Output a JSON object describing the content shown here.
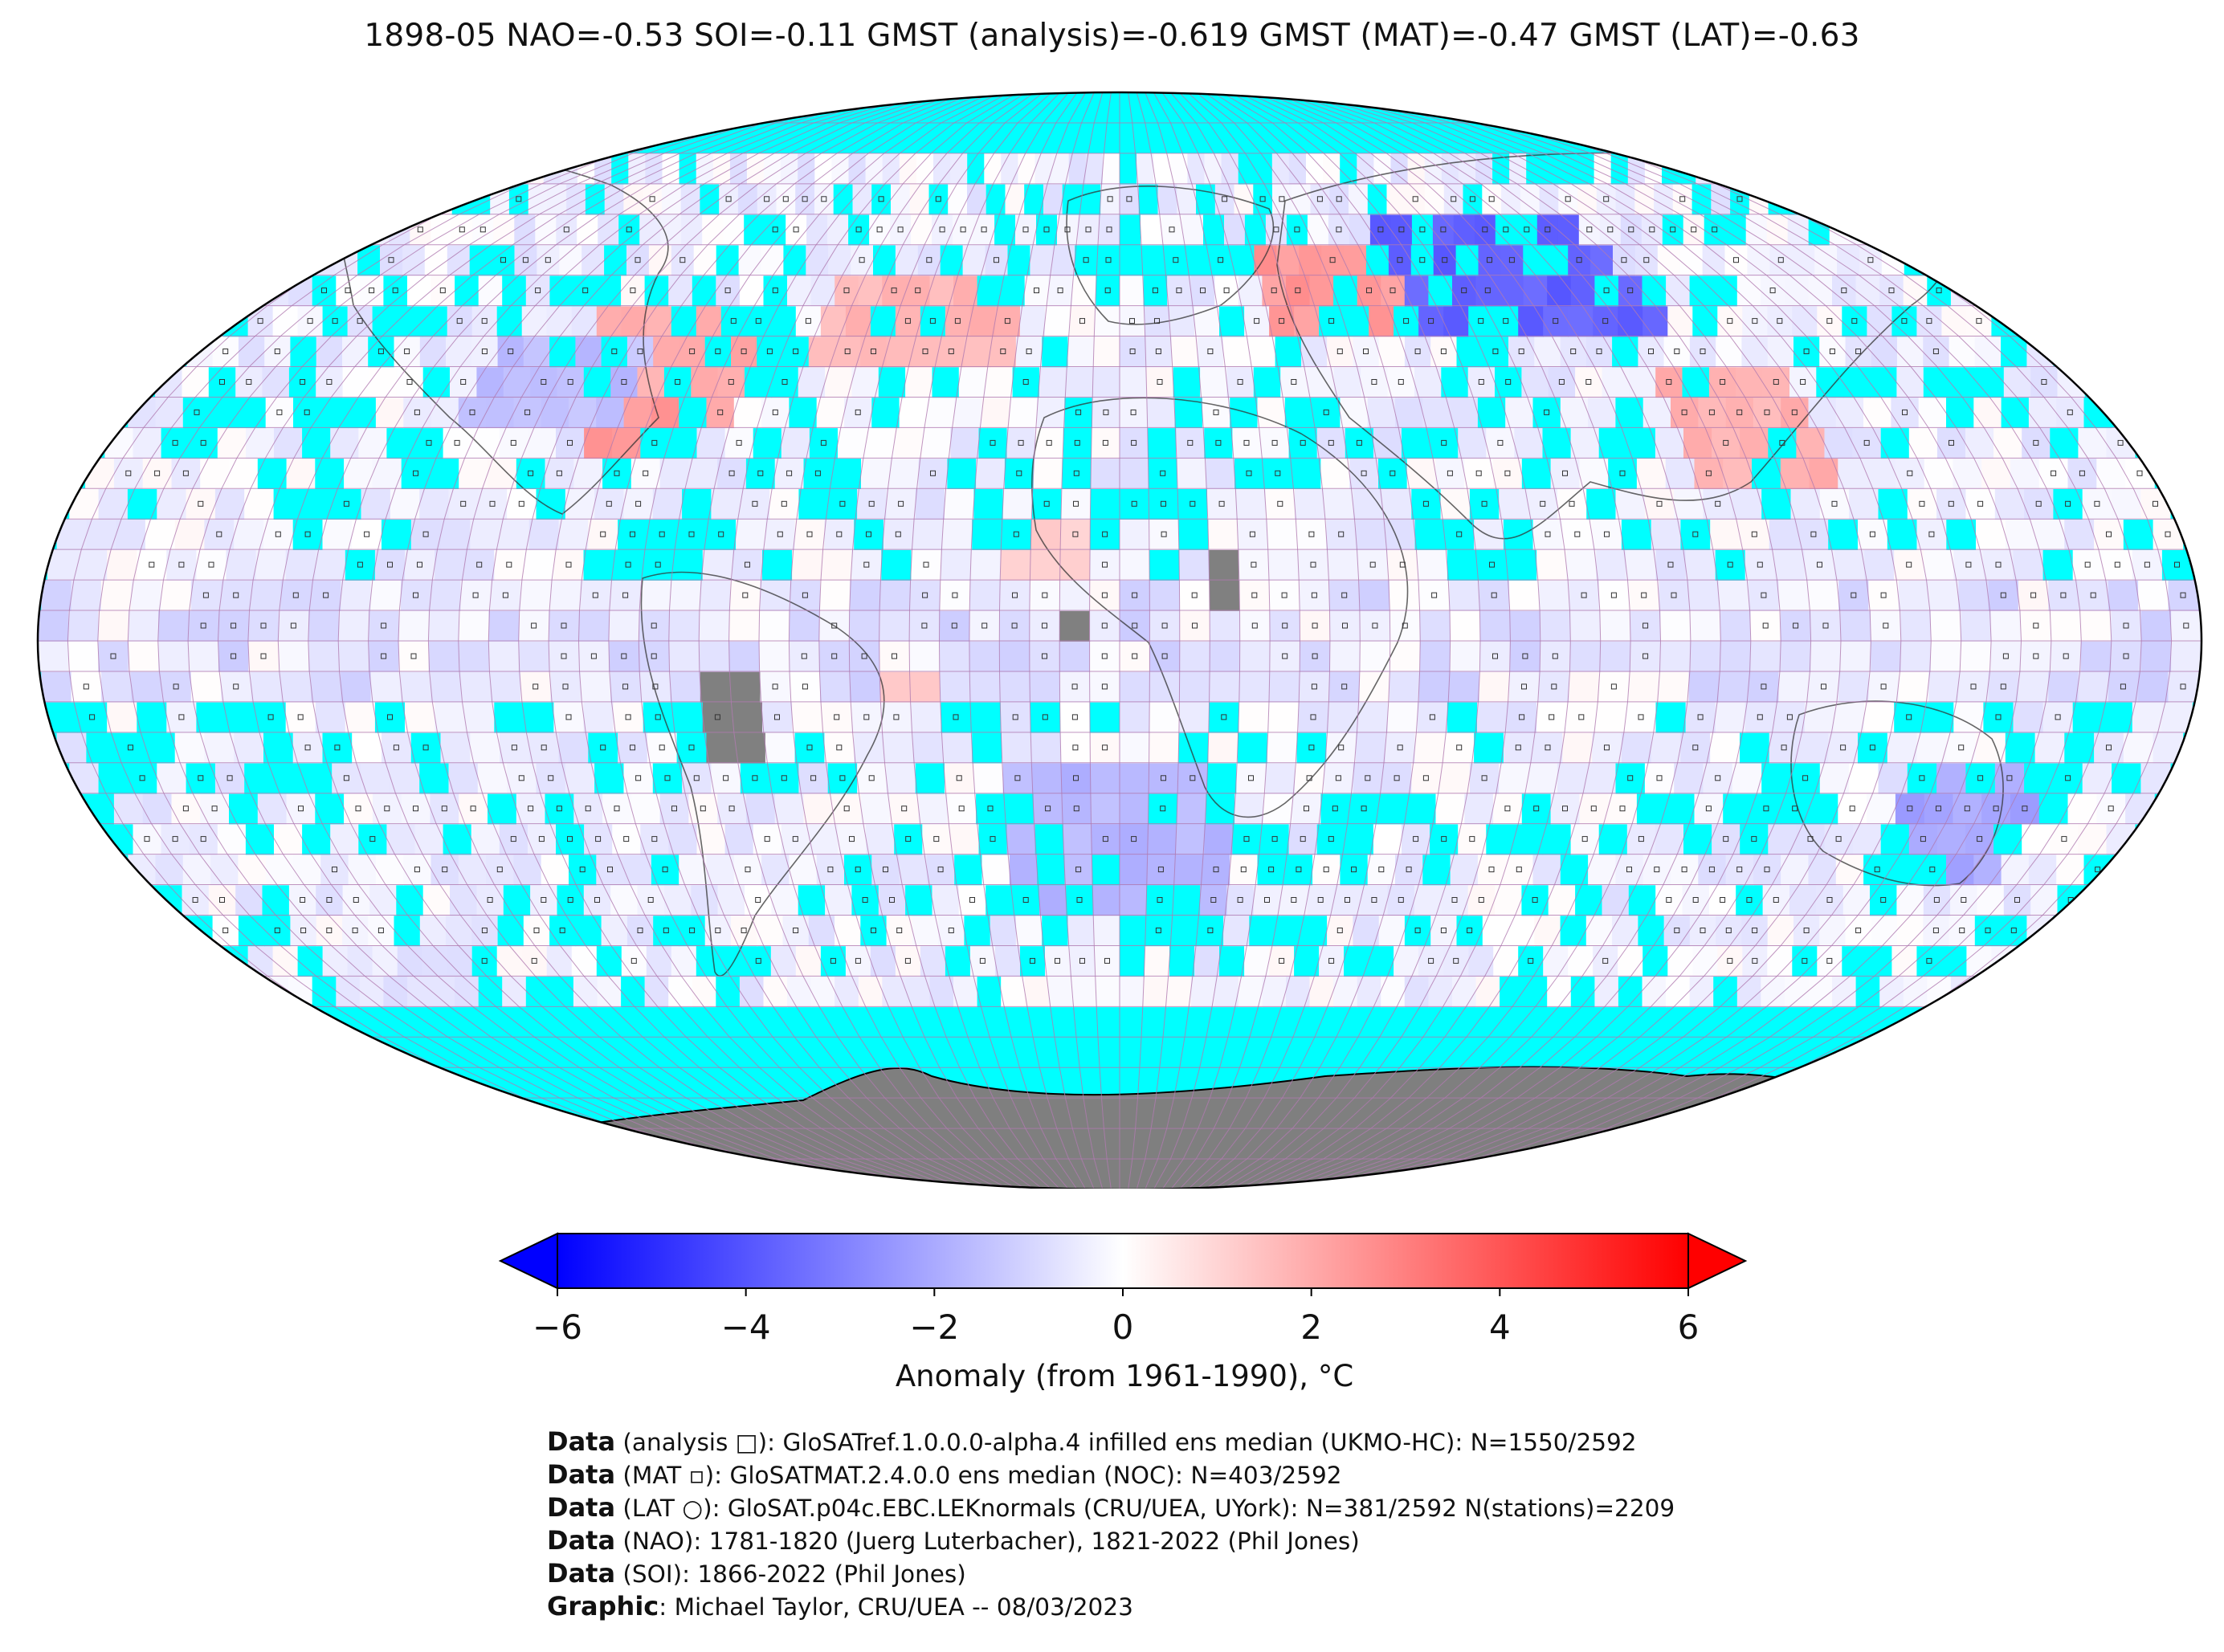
{
  "title": "1898-05 NAO=-0.53 SOI=-0.11 GMST (analysis)=-0.619 GMST (MAT)=-0.47 GMST (LAT)=-0.63",
  "colorbar": {
    "ticks": [
      "−6",
      "−4",
      "−2",
      "0",
      "2",
      "4",
      "6"
    ],
    "tick_values": [
      -6,
      -4,
      -2,
      0,
      2,
      4,
      6
    ],
    "range": [
      -6,
      6
    ],
    "label": "Anomaly (from 1961-1990), °C",
    "colors": {
      "min": "#0000ff",
      "mid": "#ffffff",
      "max": "#ff0000"
    }
  },
  "map": {
    "projection": "Robinson",
    "ocean_nodata_color": "#00ffff",
    "land_nodata_color": "#808080",
    "grid_line_color": "#b07ab0"
  },
  "notes": [
    {
      "key": "Data",
      "text": " (analysis □): GloSATref.1.0.0.0-alpha.4 infilled ens median (UKMO-HC): N=1550/2592"
    },
    {
      "key": "Data",
      "text": " (MAT ▫): GloSATMAT.2.4.0.0 ens median (NOC): N=403/2592"
    },
    {
      "key": "Data",
      "text": " (LAT ○): GloSAT.p04c.EBC.LEKnormals (CRU/UEA, UYork): N=381/2592 N(stations)=2209"
    },
    {
      "key": "Data",
      "text": " (NAO): 1781-1820 (Juerg Luterbacher), 1821-2022 (Phil Jones)"
    },
    {
      "key": "Data",
      "text": " (SOI): 1866-2022 (Phil Jones)"
    },
    {
      "key": "Graphic",
      "text": ": Michael Taylor, CRU/UEA -- 08/03/2023"
    }
  ]
}
